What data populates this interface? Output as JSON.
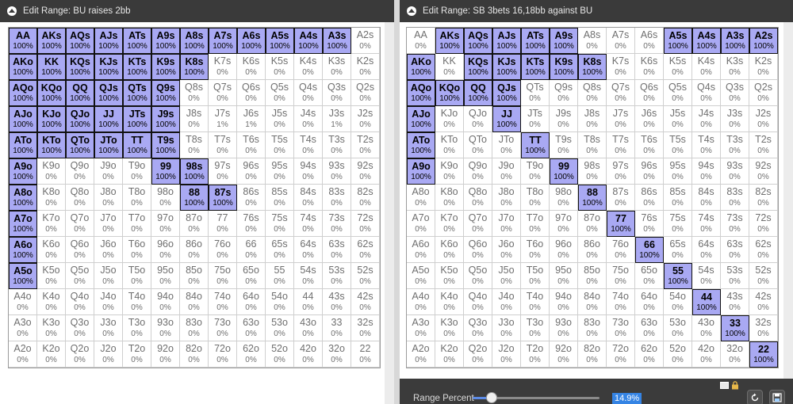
{
  "left_window": {
    "title": "Edit Range: BU raises 2bb",
    "cells": [
      [
        "AA",
        "100%",
        1
      ],
      [
        "AKs",
        "100%",
        1
      ],
      [
        "AQs",
        "100%",
        1
      ],
      [
        "AJs",
        "100%",
        1
      ],
      [
        "ATs",
        "100%",
        1
      ],
      [
        "A9s",
        "100%",
        1
      ],
      [
        "A8s",
        "100%",
        1
      ],
      [
        "A7s",
        "100%",
        1
      ],
      [
        "A6s",
        "100%",
        1
      ],
      [
        "A5s",
        "100%",
        1
      ],
      [
        "A4s",
        "100%",
        1
      ],
      [
        "A3s",
        "100%",
        1
      ],
      [
        "A2s",
        "0%",
        0
      ],
      [
        "AKo",
        "100%",
        1
      ],
      [
        "KK",
        "100%",
        1
      ],
      [
        "KQs",
        "100%",
        1
      ],
      [
        "KJs",
        "100%",
        1
      ],
      [
        "KTs",
        "100%",
        1
      ],
      [
        "K9s",
        "100%",
        1
      ],
      [
        "K8s",
        "100%",
        1
      ],
      [
        "K7s",
        "0%",
        0
      ],
      [
        "K6s",
        "0%",
        0
      ],
      [
        "K5s",
        "0%",
        0
      ],
      [
        "K4s",
        "0%",
        0
      ],
      [
        "K3s",
        "0%",
        0
      ],
      [
        "K2s",
        "0%",
        0
      ],
      [
        "AQo",
        "100%",
        1
      ],
      [
        "KQo",
        "100%",
        1
      ],
      [
        "QQ",
        "100%",
        1
      ],
      [
        "QJs",
        "100%",
        1
      ],
      [
        "QTs",
        "100%",
        1
      ],
      [
        "Q9s",
        "100%",
        1
      ],
      [
        "Q8s",
        "0%",
        0
      ],
      [
        "Q7s",
        "0%",
        0
      ],
      [
        "Q6s",
        "0%",
        0
      ],
      [
        "Q5s",
        "0%",
        0
      ],
      [
        "Q4s",
        "0%",
        0
      ],
      [
        "Q3s",
        "0%",
        0
      ],
      [
        "Q2s",
        "0%",
        0
      ],
      [
        "AJo",
        "100%",
        1
      ],
      [
        "KJo",
        "100%",
        1
      ],
      [
        "QJo",
        "100%",
        1
      ],
      [
        "JJ",
        "100%",
        1
      ],
      [
        "JTs",
        "100%",
        1
      ],
      [
        "J9s",
        "100%",
        1
      ],
      [
        "J8s",
        "0%",
        0
      ],
      [
        "J7s",
        "1%",
        0
      ],
      [
        "J6s",
        "1%",
        0
      ],
      [
        "J5s",
        "0%",
        0
      ],
      [
        "J4s",
        "0%",
        0
      ],
      [
        "J3s",
        "1%",
        0
      ],
      [
        "J2s",
        "0%",
        0
      ],
      [
        "ATo",
        "100%",
        1
      ],
      [
        "KTo",
        "100%",
        1
      ],
      [
        "QTo",
        "100%",
        1
      ],
      [
        "JTo",
        "100%",
        1
      ],
      [
        "TT",
        "100%",
        1
      ],
      [
        "T9s",
        "100%",
        1
      ],
      [
        "T8s",
        "0%",
        0
      ],
      [
        "T7s",
        "0%",
        0
      ],
      [
        "T6s",
        "0%",
        0
      ],
      [
        "T5s",
        "0%",
        0
      ],
      [
        "T4s",
        "0%",
        0
      ],
      [
        "T3s",
        "0%",
        0
      ],
      [
        "T2s",
        "0%",
        0
      ],
      [
        "A9o",
        "100%",
        1
      ],
      [
        "K9o",
        "0%",
        0
      ],
      [
        "Q9o",
        "0%",
        0
      ],
      [
        "J9o",
        "0%",
        0
      ],
      [
        "T9o",
        "0%",
        0
      ],
      [
        "99",
        "100%",
        1
      ],
      [
        "98s",
        "100%",
        1
      ],
      [
        "97s",
        "0%",
        0
      ],
      [
        "96s",
        "0%",
        0
      ],
      [
        "95s",
        "0%",
        0
      ],
      [
        "94s",
        "0%",
        0
      ],
      [
        "93s",
        "0%",
        0
      ],
      [
        "92s",
        "0%",
        0
      ],
      [
        "A8o",
        "100%",
        1
      ],
      [
        "K8o",
        "0%",
        0
      ],
      [
        "Q8o",
        "0%",
        0
      ],
      [
        "J8o",
        "0%",
        0
      ],
      [
        "T8o",
        "0%",
        0
      ],
      [
        "98o",
        "0%",
        0
      ],
      [
        "88",
        "100%",
        1
      ],
      [
        "87s",
        "100%",
        1
      ],
      [
        "86s",
        "0%",
        0
      ],
      [
        "85s",
        "0%",
        0
      ],
      [
        "84s",
        "0%",
        0
      ],
      [
        "83s",
        "0%",
        0
      ],
      [
        "82s",
        "0%",
        0
      ],
      [
        "A7o",
        "100%",
        1
      ],
      [
        "K7o",
        "0%",
        0
      ],
      [
        "Q7o",
        "0%",
        0
      ],
      [
        "J7o",
        "0%",
        0
      ],
      [
        "T7o",
        "0%",
        0
      ],
      [
        "97o",
        "0%",
        0
      ],
      [
        "87o",
        "0%",
        0
      ],
      [
        "77",
        "0%",
        0
      ],
      [
        "76s",
        "0%",
        0
      ],
      [
        "75s",
        "0%",
        0
      ],
      [
        "74s",
        "0%",
        0
      ],
      [
        "73s",
        "0%",
        0
      ],
      [
        "72s",
        "0%",
        0
      ],
      [
        "A6o",
        "100%",
        1
      ],
      [
        "K6o",
        "0%",
        0
      ],
      [
        "Q6o",
        "0%",
        0
      ],
      [
        "J6o",
        "0%",
        0
      ],
      [
        "T6o",
        "0%",
        0
      ],
      [
        "96o",
        "0%",
        0
      ],
      [
        "86o",
        "0%",
        0
      ],
      [
        "76o",
        "0%",
        0
      ],
      [
        "66",
        "0%",
        0
      ],
      [
        "65s",
        "0%",
        0
      ],
      [
        "64s",
        "0%",
        0
      ],
      [
        "63s",
        "0%",
        0
      ],
      [
        "62s",
        "0%",
        0
      ],
      [
        "A5o",
        "100%",
        1
      ],
      [
        "K5o",
        "0%",
        0
      ],
      [
        "Q5o",
        "0%",
        0
      ],
      [
        "J5o",
        "0%",
        0
      ],
      [
        "T5o",
        "0%",
        0
      ],
      [
        "95o",
        "0%",
        0
      ],
      [
        "85o",
        "0%",
        0
      ],
      [
        "75o",
        "0%",
        0
      ],
      [
        "65o",
        "0%",
        0
      ],
      [
        "55",
        "0%",
        0
      ],
      [
        "54s",
        "0%",
        0
      ],
      [
        "53s",
        "0%",
        0
      ],
      [
        "52s",
        "0%",
        0
      ],
      [
        "A4o",
        "0%",
        0
      ],
      [
        "K4o",
        "0%",
        0
      ],
      [
        "Q4o",
        "0%",
        0
      ],
      [
        "J4o",
        "0%",
        0
      ],
      [
        "T4o",
        "0%",
        0
      ],
      [
        "94o",
        "0%",
        0
      ],
      [
        "84o",
        "0%",
        0
      ],
      [
        "74o",
        "0%",
        0
      ],
      [
        "64o",
        "0%",
        0
      ],
      [
        "54o",
        "0%",
        0
      ],
      [
        "44",
        "0%",
        0
      ],
      [
        "43s",
        "0%",
        0
      ],
      [
        "42s",
        "0%",
        0
      ],
      [
        "A3o",
        "0%",
        0
      ],
      [
        "K3o",
        "0%",
        0
      ],
      [
        "Q3o",
        "0%",
        0
      ],
      [
        "J3o",
        "0%",
        0
      ],
      [
        "T3o",
        "0%",
        0
      ],
      [
        "93o",
        "0%",
        0
      ],
      [
        "83o",
        "0%",
        0
      ],
      [
        "73o",
        "0%",
        0
      ],
      [
        "63o",
        "0%",
        0
      ],
      [
        "53o",
        "0%",
        0
      ],
      [
        "43o",
        "0%",
        0
      ],
      [
        "33",
        "0%",
        0
      ],
      [
        "32s",
        "0%",
        0
      ],
      [
        "A2o",
        "0%",
        0
      ],
      [
        "K2o",
        "0%",
        0
      ],
      [
        "Q2o",
        "0%",
        0
      ],
      [
        "J2o",
        "0%",
        0
      ],
      [
        "T2o",
        "0%",
        0
      ],
      [
        "92o",
        "0%",
        0
      ],
      [
        "82o",
        "0%",
        0
      ],
      [
        "72o",
        "0%",
        0
      ],
      [
        "62o",
        "0%",
        0
      ],
      [
        "52o",
        "0%",
        0
      ],
      [
        "42o",
        "0%",
        0
      ],
      [
        "32o",
        "0%",
        0
      ],
      [
        "22",
        "0%",
        0
      ]
    ]
  },
  "right_window": {
    "title": "Edit Range: SB 3bets 16,18bb against BU",
    "cells": [
      [
        "AA",
        "0%",
        0
      ],
      [
        "AKs",
        "100%",
        1
      ],
      [
        "AQs",
        "100%",
        1
      ],
      [
        "AJs",
        "100%",
        1
      ],
      [
        "ATs",
        "100%",
        1
      ],
      [
        "A9s",
        "100%",
        1
      ],
      [
        "A8s",
        "0%",
        0
      ],
      [
        "A7s",
        "0%",
        0
      ],
      [
        "A6s",
        "0%",
        0
      ],
      [
        "A5s",
        "100%",
        1
      ],
      [
        "A4s",
        "100%",
        1
      ],
      [
        "A3s",
        "100%",
        1
      ],
      [
        "A2s",
        "100%",
        1
      ],
      [
        "AKo",
        "100%",
        1
      ],
      [
        "KK",
        "0%",
        0
      ],
      [
        "KQs",
        "100%",
        1
      ],
      [
        "KJs",
        "100%",
        1
      ],
      [
        "KTs",
        "100%",
        1
      ],
      [
        "K9s",
        "100%",
        1
      ],
      [
        "K8s",
        "100%",
        1
      ],
      [
        "K7s",
        "0%",
        0
      ],
      [
        "K6s",
        "0%",
        0
      ],
      [
        "K5s",
        "0%",
        0
      ],
      [
        "K4s",
        "0%",
        0
      ],
      [
        "K3s",
        "0%",
        0
      ],
      [
        "K2s",
        "0%",
        0
      ],
      [
        "AQo",
        "100%",
        1
      ],
      [
        "KQo",
        "100%",
        1
      ],
      [
        "QQ",
        "100%",
        1
      ],
      [
        "QJs",
        "100%",
        1
      ],
      [
        "QTs",
        "0%",
        0
      ],
      [
        "Q9s",
        "0%",
        0
      ],
      [
        "Q8s",
        "0%",
        0
      ],
      [
        "Q7s",
        "0%",
        0
      ],
      [
        "Q6s",
        "0%",
        0
      ],
      [
        "Q5s",
        "0%",
        0
      ],
      [
        "Q4s",
        "0%",
        0
      ],
      [
        "Q3s",
        "0%",
        0
      ],
      [
        "Q2s",
        "0%",
        0
      ],
      [
        "AJo",
        "100%",
        1
      ],
      [
        "KJo",
        "0%",
        0
      ],
      [
        "QJo",
        "0%",
        0
      ],
      [
        "JJ",
        "100%",
        1
      ],
      [
        "JTs",
        "0%",
        0
      ],
      [
        "J9s",
        "0%",
        0
      ],
      [
        "J8s",
        "0%",
        0
      ],
      [
        "J7s",
        "0%",
        0
      ],
      [
        "J6s",
        "0%",
        0
      ],
      [
        "J5s",
        "0%",
        0
      ],
      [
        "J4s",
        "0%",
        0
      ],
      [
        "J3s",
        "0%",
        0
      ],
      [
        "J2s",
        "0%",
        0
      ],
      [
        "ATo",
        "100%",
        1
      ],
      [
        "KTo",
        "0%",
        0
      ],
      [
        "QTo",
        "0%",
        0
      ],
      [
        "JTo",
        "0%",
        0
      ],
      [
        "TT",
        "100%",
        1
      ],
      [
        "T9s",
        "0%",
        0
      ],
      [
        "T8s",
        "0%",
        0
      ],
      [
        "T7s",
        "0%",
        0
      ],
      [
        "T6s",
        "0%",
        0
      ],
      [
        "T5s",
        "0%",
        0
      ],
      [
        "T4s",
        "0%",
        0
      ],
      [
        "T3s",
        "0%",
        0
      ],
      [
        "T2s",
        "0%",
        0
      ],
      [
        "A9o",
        "100%",
        1
      ],
      [
        "K9o",
        "0%",
        0
      ],
      [
        "Q9o",
        "0%",
        0
      ],
      [
        "J9o",
        "0%",
        0
      ],
      [
        "T9o",
        "0%",
        0
      ],
      [
        "99",
        "100%",
        1
      ],
      [
        "98s",
        "0%",
        0
      ],
      [
        "97s",
        "0%",
        0
      ],
      [
        "96s",
        "0%",
        0
      ],
      [
        "95s",
        "0%",
        0
      ],
      [
        "94s",
        "0%",
        0
      ],
      [
        "93s",
        "0%",
        0
      ],
      [
        "92s",
        "0%",
        0
      ],
      [
        "A8o",
        "0%",
        0
      ],
      [
        "K8o",
        "0%",
        0
      ],
      [
        "Q8o",
        "0%",
        0
      ],
      [
        "J8o",
        "0%",
        0
      ],
      [
        "T8o",
        "0%",
        0
      ],
      [
        "98o",
        "0%",
        0
      ],
      [
        "88",
        "100%",
        1
      ],
      [
        "87s",
        "0%",
        0
      ],
      [
        "86s",
        "0%",
        0
      ],
      [
        "85s",
        "0%",
        0
      ],
      [
        "84s",
        "0%",
        0
      ],
      [
        "83s",
        "0%",
        0
      ],
      [
        "82s",
        "0%",
        0
      ],
      [
        "A7o",
        "0%",
        0
      ],
      [
        "K7o",
        "0%",
        0
      ],
      [
        "Q7o",
        "0%",
        0
      ],
      [
        "J7o",
        "0%",
        0
      ],
      [
        "T7o",
        "0%",
        0
      ],
      [
        "97o",
        "0%",
        0
      ],
      [
        "87o",
        "0%",
        0
      ],
      [
        "77",
        "100%",
        1
      ],
      [
        "76s",
        "0%",
        0
      ],
      [
        "75s",
        "0%",
        0
      ],
      [
        "74s",
        "0%",
        0
      ],
      [
        "73s",
        "0%",
        0
      ],
      [
        "72s",
        "0%",
        0
      ],
      [
        "A6o",
        "0%",
        0
      ],
      [
        "K6o",
        "0%",
        0
      ],
      [
        "Q6o",
        "0%",
        0
      ],
      [
        "J6o",
        "0%",
        0
      ],
      [
        "T6o",
        "0%",
        0
      ],
      [
        "96o",
        "0%",
        0
      ],
      [
        "86o",
        "0%",
        0
      ],
      [
        "76o",
        "0%",
        0
      ],
      [
        "66",
        "100%",
        1
      ],
      [
        "65s",
        "0%",
        0
      ],
      [
        "64s",
        "0%",
        0
      ],
      [
        "63s",
        "0%",
        0
      ],
      [
        "62s",
        "0%",
        0
      ],
      [
        "A5o",
        "0%",
        0
      ],
      [
        "K5o",
        "0%",
        0
      ],
      [
        "Q5o",
        "0%",
        0
      ],
      [
        "J5o",
        "0%",
        0
      ],
      [
        "T5o",
        "0%",
        0
      ],
      [
        "95o",
        "0%",
        0
      ],
      [
        "85o",
        "0%",
        0
      ],
      [
        "75o",
        "0%",
        0
      ],
      [
        "65o",
        "0%",
        0
      ],
      [
        "55",
        "100%",
        1
      ],
      [
        "54s",
        "0%",
        0
      ],
      [
        "53s",
        "0%",
        0
      ],
      [
        "52s",
        "0%",
        0
      ],
      [
        "A4o",
        "0%",
        0
      ],
      [
        "K4o",
        "0%",
        0
      ],
      [
        "Q4o",
        "0%",
        0
      ],
      [
        "J4o",
        "0%",
        0
      ],
      [
        "T4o",
        "0%",
        0
      ],
      [
        "94o",
        "0%",
        0
      ],
      [
        "84o",
        "0%",
        0
      ],
      [
        "74o",
        "0%",
        0
      ],
      [
        "64o",
        "0%",
        0
      ],
      [
        "54o",
        "0%",
        0
      ],
      [
        "44",
        "100%",
        1
      ],
      [
        "43s",
        "0%",
        0
      ],
      [
        "42s",
        "0%",
        0
      ],
      [
        "A3o",
        "0%",
        0
      ],
      [
        "K3o",
        "0%",
        0
      ],
      [
        "Q3o",
        "0%",
        0
      ],
      [
        "J3o",
        "0%",
        0
      ],
      [
        "T3o",
        "0%",
        0
      ],
      [
        "93o",
        "0%",
        0
      ],
      [
        "83o",
        "0%",
        0
      ],
      [
        "73o",
        "0%",
        0
      ],
      [
        "63o",
        "0%",
        0
      ],
      [
        "53o",
        "0%",
        0
      ],
      [
        "43o",
        "0%",
        0
      ],
      [
        "33",
        "100%",
        1
      ],
      [
        "32s",
        "0%",
        0
      ],
      [
        "A2o",
        "0%",
        0
      ],
      [
        "K2o",
        "0%",
        0
      ],
      [
        "Q2o",
        "0%",
        0
      ],
      [
        "J2o",
        "0%",
        0
      ],
      [
        "T2o",
        "0%",
        0
      ],
      [
        "92o",
        "0%",
        0
      ],
      [
        "82o",
        "0%",
        0
      ],
      [
        "72o",
        "0%",
        0
      ],
      [
        "62o",
        "0%",
        0
      ],
      [
        "52o",
        "0%",
        0
      ],
      [
        "42o",
        "0%",
        0
      ],
      [
        "32o",
        "0%",
        0
      ],
      [
        "22",
        "100%",
        1
      ]
    ],
    "range_percent": {
      "label": "Range Percent",
      "value_text": "14.9%",
      "slider_fraction": 0.149
    },
    "toolbar_icons": [
      "mail-icon",
      "lock-icon",
      "refresh-icon",
      "save-icon"
    ]
  },
  "colors": {
    "selected_fill": "#a9a9f3",
    "title_bar": "#3a3a3a",
    "accent": "#3584e4"
  }
}
